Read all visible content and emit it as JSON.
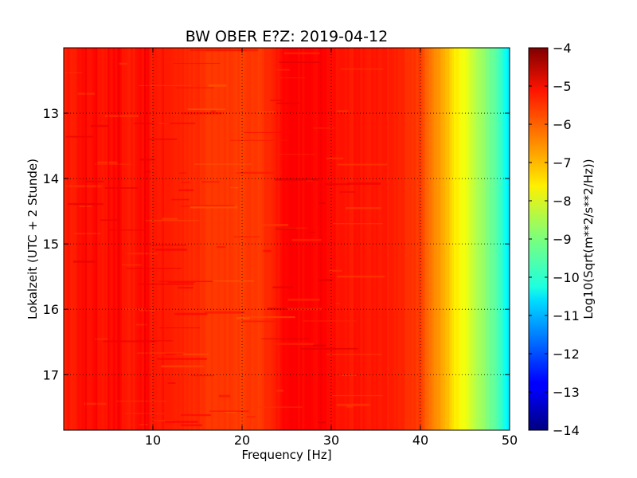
{
  "chart_data": {
    "type": "heatmap",
    "title": "BW OBER E?Z: 2019-04-12",
    "xlabel": "Frequency [Hz]",
    "ylabel": "Lokalzeit (UTC + 2 Stunde)",
    "xlim": [
      0,
      50
    ],
    "ylim": [
      17.85,
      12.0
    ],
    "y_inverted": true,
    "x_ticks": [
      10,
      20,
      30,
      40,
      50
    ],
    "x_tick_labels": [
      "10",
      "20",
      "30",
      "40",
      "50"
    ],
    "y_ticks": [
      13,
      14,
      15,
      16,
      17
    ],
    "y_tick_labels": [
      "13",
      "14",
      "15",
      "16",
      "17"
    ],
    "grid": true,
    "colormap": "jet",
    "colorbar": {
      "label": "Log10(Sqrt(m**2/s**2/Hz))",
      "range": [
        -14,
        -4
      ],
      "ticks": [
        -4,
        -5,
        -6,
        -7,
        -8,
        -9,
        -10,
        -11,
        -12,
        -13,
        -14
      ],
      "tick_labels": [
        "−4",
        "−5",
        "−6",
        "−7",
        "−8",
        "−9",
        "−10",
        "−11",
        "−12",
        "−13",
        "−14"
      ]
    },
    "mean_spectrum": {
      "frequency_hz": [
        0,
        0.5,
        1,
        2,
        3,
        4,
        5,
        6,
        7,
        8,
        9,
        10,
        11,
        12,
        14,
        16,
        18,
        20,
        22,
        24,
        25,
        26,
        28,
        29,
        30,
        31,
        33,
        35,
        37,
        39,
        40,
        41,
        42,
        43,
        44,
        45,
        46,
        47,
        48,
        49,
        49.5,
        50
      ],
      "log10_amplitude": [
        -5.5,
        -5.6,
        -5.45,
        -5.4,
        -5.35,
        -5.4,
        -5.4,
        -5.3,
        -5.5,
        -5.5,
        -5.3,
        -5.5,
        -5.45,
        -5.55,
        -5.6,
        -5.75,
        -5.75,
        -5.85,
        -5.8,
        -5.45,
        -5.2,
        -5.25,
        -5.3,
        -5.25,
        -5.3,
        -5.45,
        -5.45,
        -5.5,
        -5.55,
        -5.7,
        -5.85,
        -6.3,
        -6.7,
        -7.1,
        -7.6,
        -7.95,
        -8.35,
        -8.8,
        -9.2,
        -9.7,
        -10.1,
        -10.6
      ]
    },
    "dark_line_frequencies_hz": [
      0.5,
      2.5,
      3.7,
      5.0,
      6.2,
      9.1,
      9.5
    ]
  }
}
